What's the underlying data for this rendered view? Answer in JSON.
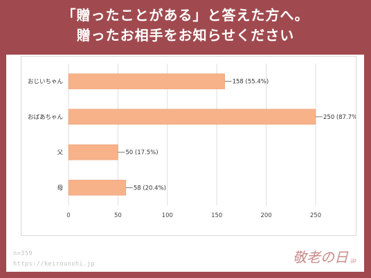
{
  "header": {
    "title_line1": "「贈ったことがある」と答えた方へ。",
    "title_line2": "贈ったお相手をお知らせください"
  },
  "footer": {
    "sample_size": "n=359",
    "url": "https://keirounohi.jp"
  },
  "logo": {
    "text": "敬老の日",
    "suffix": ".jp"
  },
  "colors": {
    "background": "#a04a4f",
    "bar": "#f7b28a",
    "bar_stroke": "#e9956a",
    "grid": "#dddddd"
  },
  "chart_data": {
    "type": "bar",
    "orientation": "horizontal",
    "categories": [
      "おじいちゃん",
      "おばあちゃん",
      "父",
      "母"
    ],
    "values": [
      158,
      250,
      50,
      58
    ],
    "data_labels": [
      "158 (55.4%)",
      "250 (87.7%",
      "50 (17.5%)",
      "58 (20.4%)"
    ],
    "x_ticks": [
      0,
      50,
      100,
      150,
      200,
      250
    ],
    "xlim": [
      0,
      250
    ],
    "grid": true,
    "legend": "none"
  }
}
